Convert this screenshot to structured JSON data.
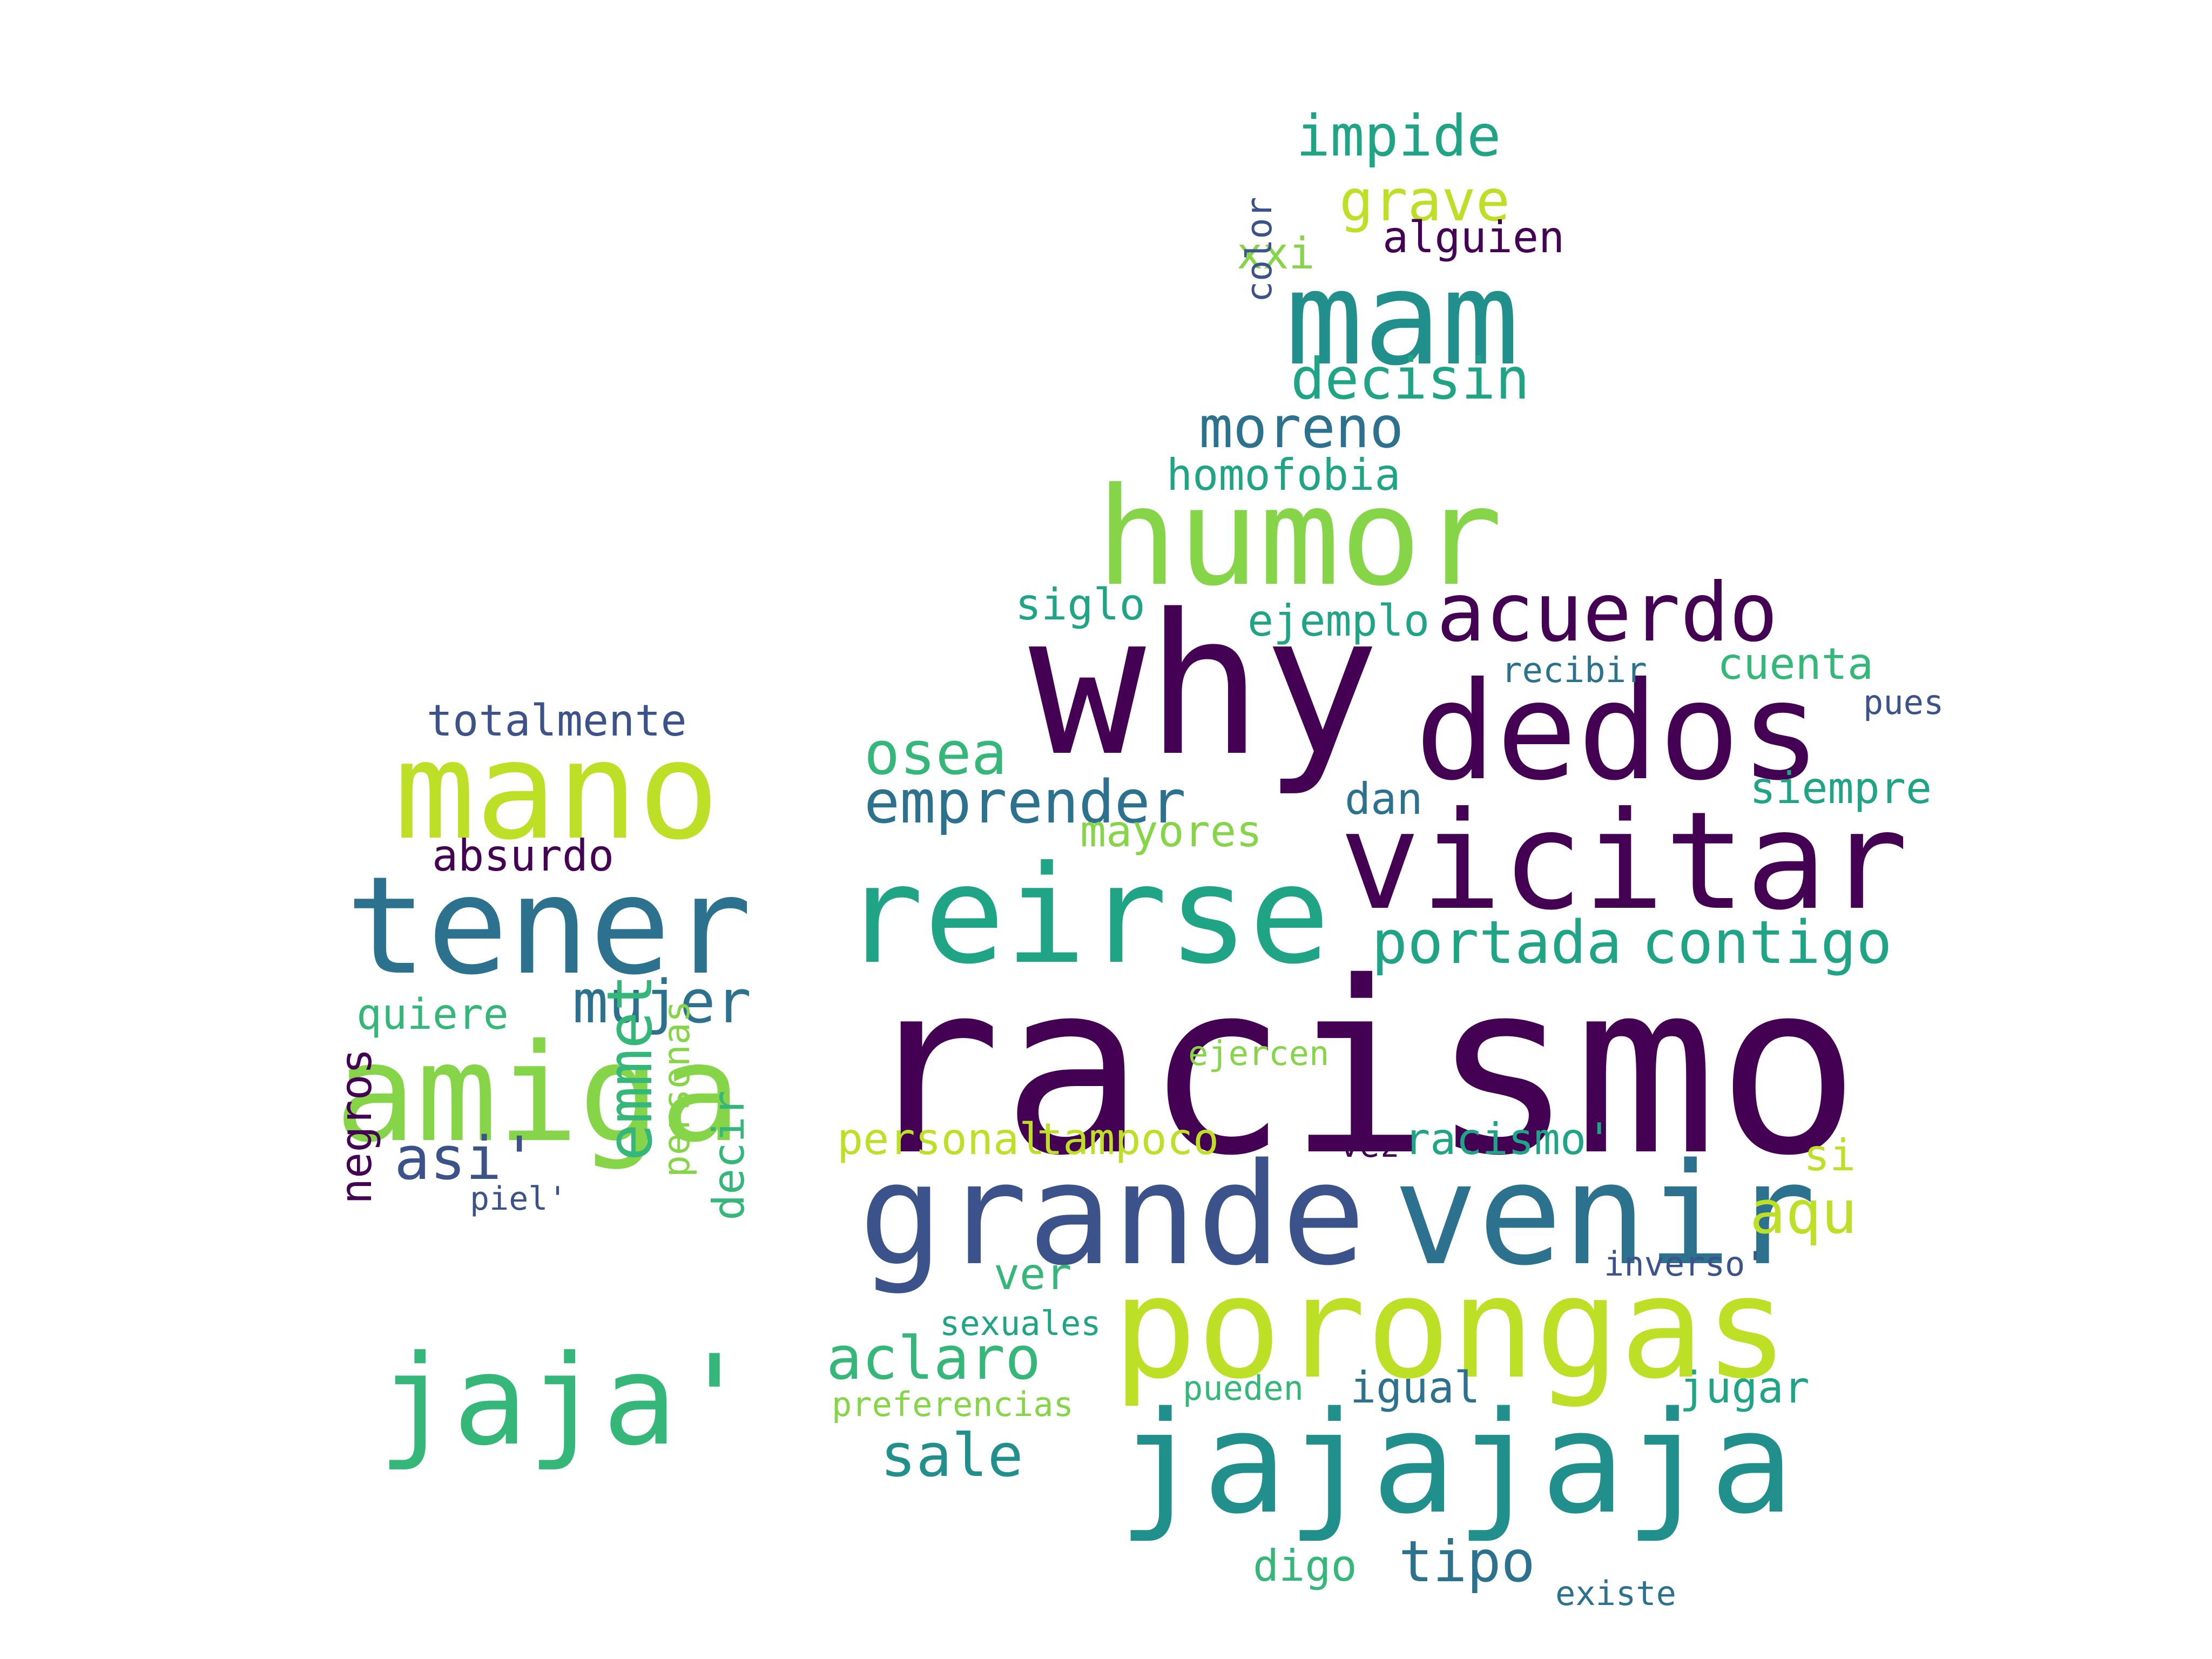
{
  "palette": {
    "dark_purple": "#440154",
    "indigo": "#3b528b",
    "teal": "#21908d",
    "green": "#20a486",
    "mint": "#35b779",
    "lime": "#86d549",
    "yellow_green": "#bddf26"
  },
  "words": [
    {
      "text": "racismo",
      "weight": 1.0,
      "color": "#440154"
    },
    {
      "text": "why",
      "weight": 0.86,
      "color": "#440154"
    },
    {
      "text": "grande",
      "weight": 0.62,
      "color": "#3b528b"
    },
    {
      "text": "venir",
      "weight": 0.62,
      "color": "#2c728e"
    },
    {
      "text": "porongas",
      "weight": 0.62,
      "color": "#bddf26"
    },
    {
      "text": "jajajaja",
      "weight": 0.62,
      "color": "#21908d"
    },
    {
      "text": "dedos",
      "weight": 0.6,
      "color": "#440154"
    },
    {
      "text": "vicitar",
      "weight": 0.6,
      "color": "#440154"
    },
    {
      "text": "reirse",
      "weight": 0.58,
      "color": "#20a486"
    },
    {
      "text": "humor",
      "weight": 0.58,
      "color": "#86d549"
    },
    {
      "text": "mam",
      "weight": 0.58,
      "color": "#21908d"
    },
    {
      "text": "mano",
      "weight": 0.58,
      "color": "#bddf26"
    },
    {
      "text": "tener",
      "weight": 0.58,
      "color": "#2c728e"
    },
    {
      "text": "amiga",
      "weight": 0.58,
      "color": "#86d549"
    },
    {
      "text": "jaja'",
      "weight": 0.56,
      "color": "#35b779"
    },
    {
      "text": "acuerdo",
      "weight": 0.36,
      "color": "#440154"
    },
    {
      "text": "osea",
      "weight": 0.26,
      "color": "#35b779"
    },
    {
      "text": "emprender",
      "weight": 0.26,
      "color": "#2c728e"
    },
    {
      "text": "portada",
      "weight": 0.28,
      "color": "#20a486"
    },
    {
      "text": "contigo",
      "weight": 0.28,
      "color": "#20a486"
    },
    {
      "text": "mujer",
      "weight": 0.26,
      "color": "#2c728e"
    },
    {
      "text": "asi'",
      "weight": 0.26,
      "color": "#3b528b"
    },
    {
      "text": "emmet",
      "weight": 0.28,
      "color": "#35b779",
      "vertical": true
    },
    {
      "text": "aqu",
      "weight": 0.26,
      "color": "#bddf26"
    },
    {
      "text": "aclaro",
      "weight": 0.26,
      "color": "#35b779"
    },
    {
      "text": "sale",
      "weight": 0.26,
      "color": "#21908d"
    },
    {
      "text": "tipo",
      "weight": 0.26,
      "color": "#2c728e"
    },
    {
      "text": "impide",
      "weight": 0.25,
      "color": "#20a486"
    },
    {
      "text": "grave",
      "weight": 0.25,
      "color": "#bddf26"
    },
    {
      "text": "decisin",
      "weight": 0.25,
      "color": "#20a486"
    },
    {
      "text": "moreno",
      "weight": 0.25,
      "color": "#2c728e"
    },
    {
      "text": "totalmente",
      "weight": 0.2,
      "color": "#3b528b"
    },
    {
      "text": "absurdo",
      "weight": 0.2,
      "color": "#440154"
    },
    {
      "text": "quiere",
      "weight": 0.19,
      "color": "#35b779"
    },
    {
      "text": "negros",
      "weight": 0.19,
      "color": "#440154",
      "vertical": true
    },
    {
      "text": "personas",
      "weight": 0.17,
      "color": "#86d549",
      "vertical": true
    },
    {
      "text": "decir",
      "weight": 0.19,
      "color": "#35b779",
      "vertical": true
    },
    {
      "text": "piel'",
      "weight": 0.15,
      "color": "#3b528b"
    },
    {
      "text": "alguien",
      "weight": 0.2,
      "color": "#440154"
    },
    {
      "text": "xxi",
      "weight": 0.19,
      "color": "#86d549"
    },
    {
      "text": "color",
      "weight": 0.16,
      "color": "#3b528b",
      "vertical": true
    },
    {
      "text": "homofobia",
      "weight": 0.2,
      "color": "#20a486"
    },
    {
      "text": "siglo",
      "weight": 0.19,
      "color": "#20a486"
    },
    {
      "text": "ejemplo",
      "weight": 0.19,
      "color": "#20a486"
    },
    {
      "text": "recibir",
      "weight": 0.16,
      "color": "#2c728e"
    },
    {
      "text": "cuenta",
      "weight": 0.19,
      "color": "#35b779"
    },
    {
      "text": "pues",
      "weight": 0.15,
      "color": "#3b528b"
    },
    {
      "text": "siempre",
      "weight": 0.19,
      "color": "#20a486"
    },
    {
      "text": "dan",
      "weight": 0.19,
      "color": "#2c728e"
    },
    {
      "text": "mayores",
      "weight": 0.19,
      "color": "#86d549"
    },
    {
      "text": "ejercen",
      "weight": 0.15,
      "color": "#86d549"
    },
    {
      "text": "personal",
      "weight": 0.19,
      "color": "#bddf26"
    },
    {
      "text": "tampoco",
      "weight": 0.19,
      "color": "#bddf26"
    },
    {
      "text": "vez",
      "weight": 0.15,
      "color": "#440154"
    },
    {
      "text": "racismo'",
      "weight": 0.19,
      "color": "#20a486"
    },
    {
      "text": "si",
      "weight": 0.19,
      "color": "#bddf26"
    },
    {
      "text": "inverso'",
      "weight": 0.15,
      "color": "#3b528b"
    },
    {
      "text": "ver",
      "weight": 0.19,
      "color": "#35b779"
    },
    {
      "text": "sexuales",
      "weight": 0.15,
      "color": "#20a486"
    },
    {
      "text": "preferencias",
      "weight": 0.15,
      "color": "#86d549"
    },
    {
      "text": "pueden",
      "weight": 0.15,
      "color": "#35b779"
    },
    {
      "text": "igual",
      "weight": 0.19,
      "color": "#2c728e"
    },
    {
      "text": "jugar",
      "weight": 0.19,
      "color": "#20a486"
    },
    {
      "text": "digo",
      "weight": 0.19,
      "color": "#35b779"
    },
    {
      "text": "existe",
      "weight": 0.15,
      "color": "#2c728e"
    }
  ]
}
